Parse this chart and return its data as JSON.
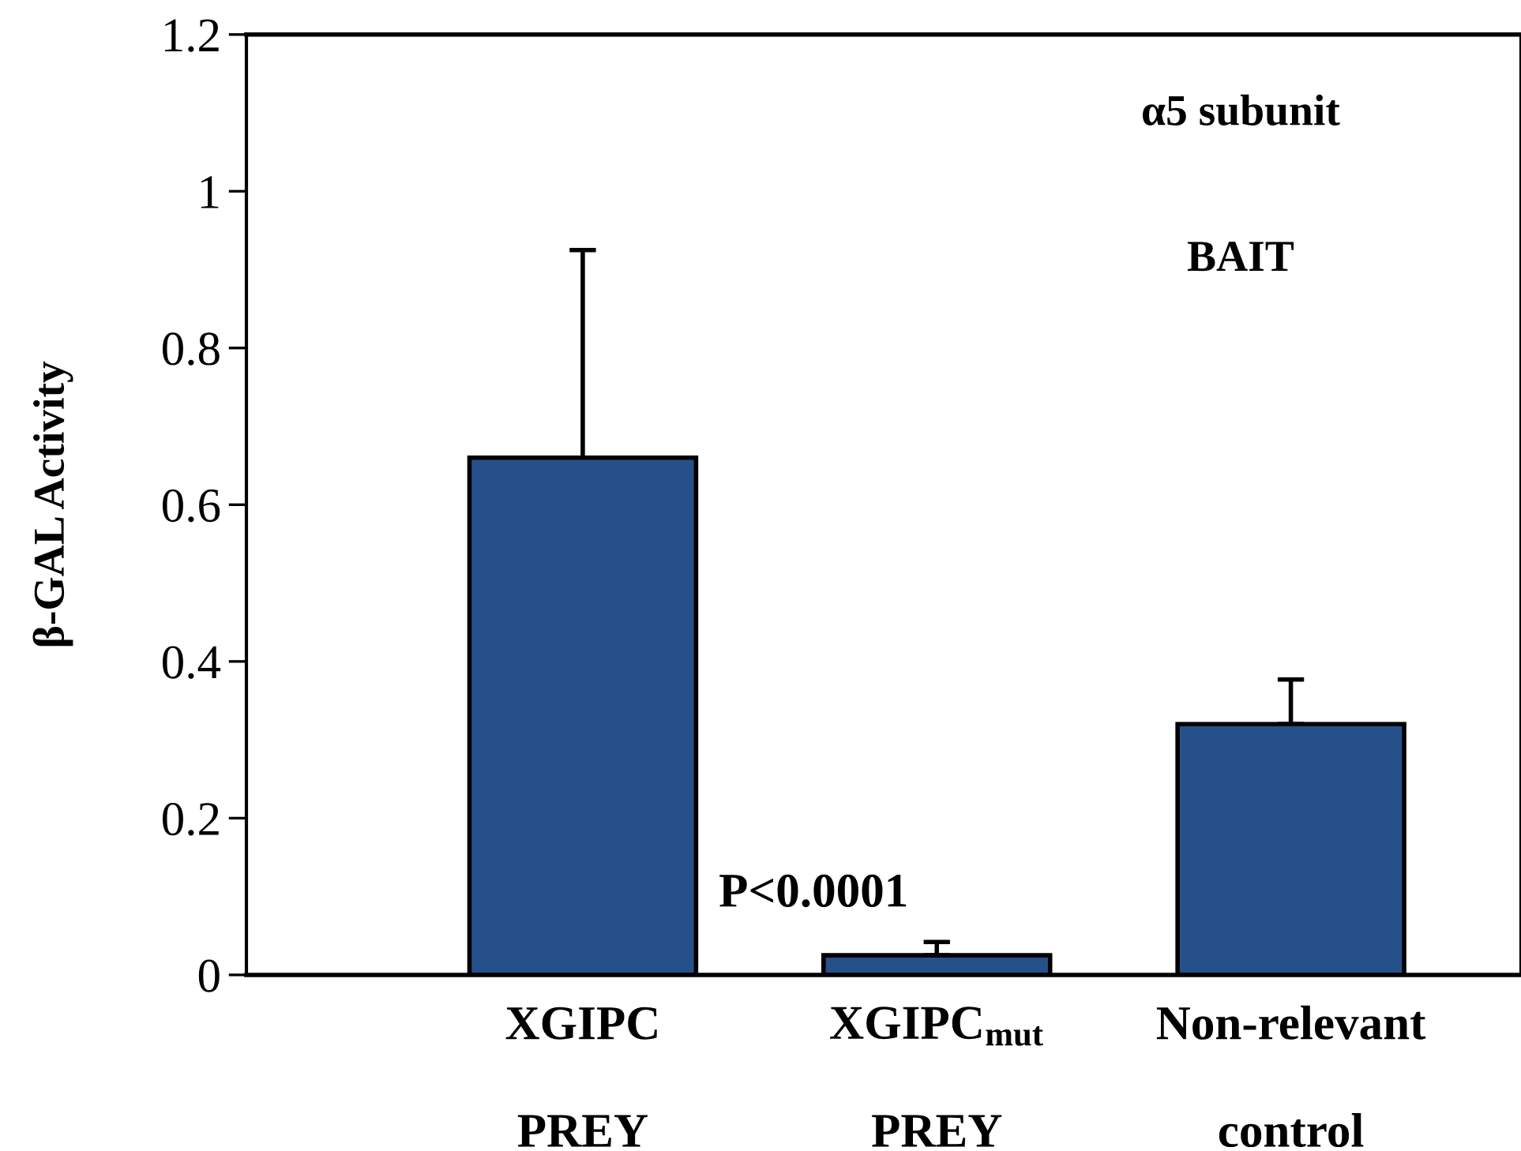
{
  "chart_data": {
    "type": "bar",
    "ylabel": "β-GAL Activity",
    "categories": [
      "XGIPC\n\nPREY",
      "XGIPC$_{mut}$\n\nPREY",
      "Non-relevant\n\ncontrol"
    ],
    "values": [
      0.66,
      0.025,
      0.32
    ],
    "errors": [
      [
        0.66,
        0.925
      ],
      [
        0.025,
        0.042
      ],
      [
        0.32,
        0.377
      ]
    ],
    "color": "#26508a",
    "ylim": [
      0,
      1.2
    ],
    "yticks": [
      0,
      0.2,
      0.4,
      0.6,
      0.8,
      1,
      1.2
    ],
    "grid": false,
    "annotations": [
      "α5 subunit",
      "BAIT",
      "P<0.0001"
    ]
  }
}
